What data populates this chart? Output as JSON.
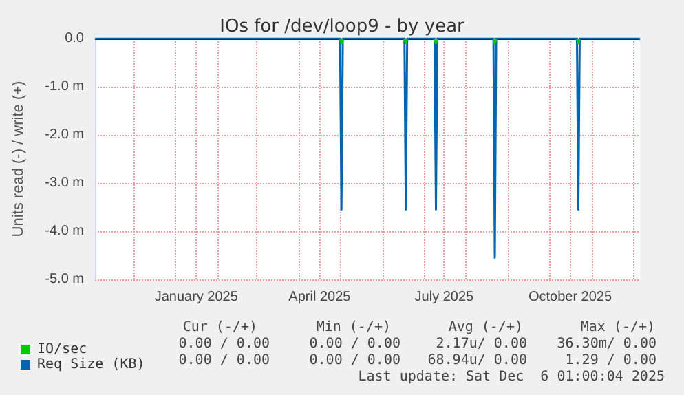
{
  "chart_data": {
    "type": "line",
    "title": "IOs for /dev/loop9 - by year",
    "ylabel": "Units read (-) / write (+)",
    "series": [
      {
        "name": "IO/sec",
        "color": "#00cc00",
        "x": [
          "2025-05-01",
          "2025-05-02",
          "2025-05-03",
          "2025-05-04",
          "2025-06-17",
          "2025-06-18",
          "2025-06-19",
          "2025-06-20",
          "2025-07-09",
          "2025-07-10",
          "2025-07-11",
          "2025-07-12",
          "2025-08-21",
          "2025-08-22",
          "2025-08-23",
          "2025-08-24",
          "2025-10-21",
          "2025-10-22",
          "2025-10-23"
        ],
        "values": [
          0,
          -0.1,
          0,
          null,
          0,
          -0.1,
          0,
          null,
          0,
          -0.1,
          0,
          null,
          0,
          -0.1,
          0,
          null,
          0,
          -0.1,
          0
        ]
      },
      {
        "name": "Req Size (KB)",
        "color": "#0066b3",
        "x": [
          "2024-11-03",
          "2025-05-01",
          "2025-05-02",
          "2025-05-03",
          "2025-06-17",
          "2025-06-18",
          "2025-06-19",
          "2025-07-09",
          "2025-07-10",
          "2025-07-11",
          "2025-08-21",
          "2025-08-22",
          "2025-08-23",
          "2025-10-21",
          "2025-10-22",
          "2025-10-23",
          "2025-12-06"
        ],
        "values": [
          0,
          0,
          -3.55,
          0,
          0,
          -3.55,
          0,
          0,
          -3.55,
          0,
          0,
          -4.55,
          0,
          0,
          -3.55,
          0,
          0
        ]
      }
    ],
    "xlim": [
      "2024-11-03",
      "2025-12-06"
    ],
    "xticks": [
      {
        "value": "2024-12-01",
        "label": null
      },
      {
        "value": "2025-01-01",
        "label": null
      },
      {
        "value": "2025-01-16",
        "label": "January 2025"
      },
      {
        "value": "2025-02-01",
        "label": null
      },
      {
        "value": "2025-03-01",
        "label": null
      },
      {
        "value": "2025-04-01",
        "label": null
      },
      {
        "value": "2025-04-16",
        "label": "April 2025"
      },
      {
        "value": "2025-05-01",
        "label": null
      },
      {
        "value": "2025-06-01",
        "label": null
      },
      {
        "value": "2025-07-01",
        "label": null
      },
      {
        "value": "2025-07-16",
        "label": "July 2025"
      },
      {
        "value": "2025-08-01",
        "label": null
      },
      {
        "value": "2025-09-01",
        "label": null
      },
      {
        "value": "2025-10-01",
        "label": null
      },
      {
        "value": "2025-10-16",
        "label": "October 2025"
      },
      {
        "value": "2025-11-01",
        "label": null
      },
      {
        "value": "2025-12-01",
        "label": null
      }
    ],
    "ylim": [
      -5,
      0
    ],
    "yticks": [
      {
        "value": -5,
        "label": "-5.0 m"
      },
      {
        "value": -4,
        "label": "-4.0 m"
      },
      {
        "value": -3,
        "label": "-3.0 m"
      },
      {
        "value": -2,
        "label": "-2.0 m"
      },
      {
        "value": -1,
        "label": "-1.0 m"
      },
      {
        "value": 0,
        "label": "0.0"
      }
    ],
    "ref_lines": [
      {
        "axis": "y",
        "value": 0,
        "label": null,
        "color": "#000000"
      }
    ],
    "grid": true,
    "legend": "bottom left",
    "marker": "none",
    "line_style": "solid",
    "annotations": [
      "Cur (-/+)",
      "Min (-/+)",
      "Avg (-/+)",
      "Max (-/+)",
      "0.00 / 0.00",
      "0.00 / 0.00",
      "2.17u/ 0.00",
      "36.30m/ 0.00",
      "0.00 / 0.00",
      "0.00 / 0.00",
      "68.94u/ 0.00",
      "1.29 / 0.00",
      "Last update: Sat Dec  6 01:00:04 2025"
    ]
  }
}
